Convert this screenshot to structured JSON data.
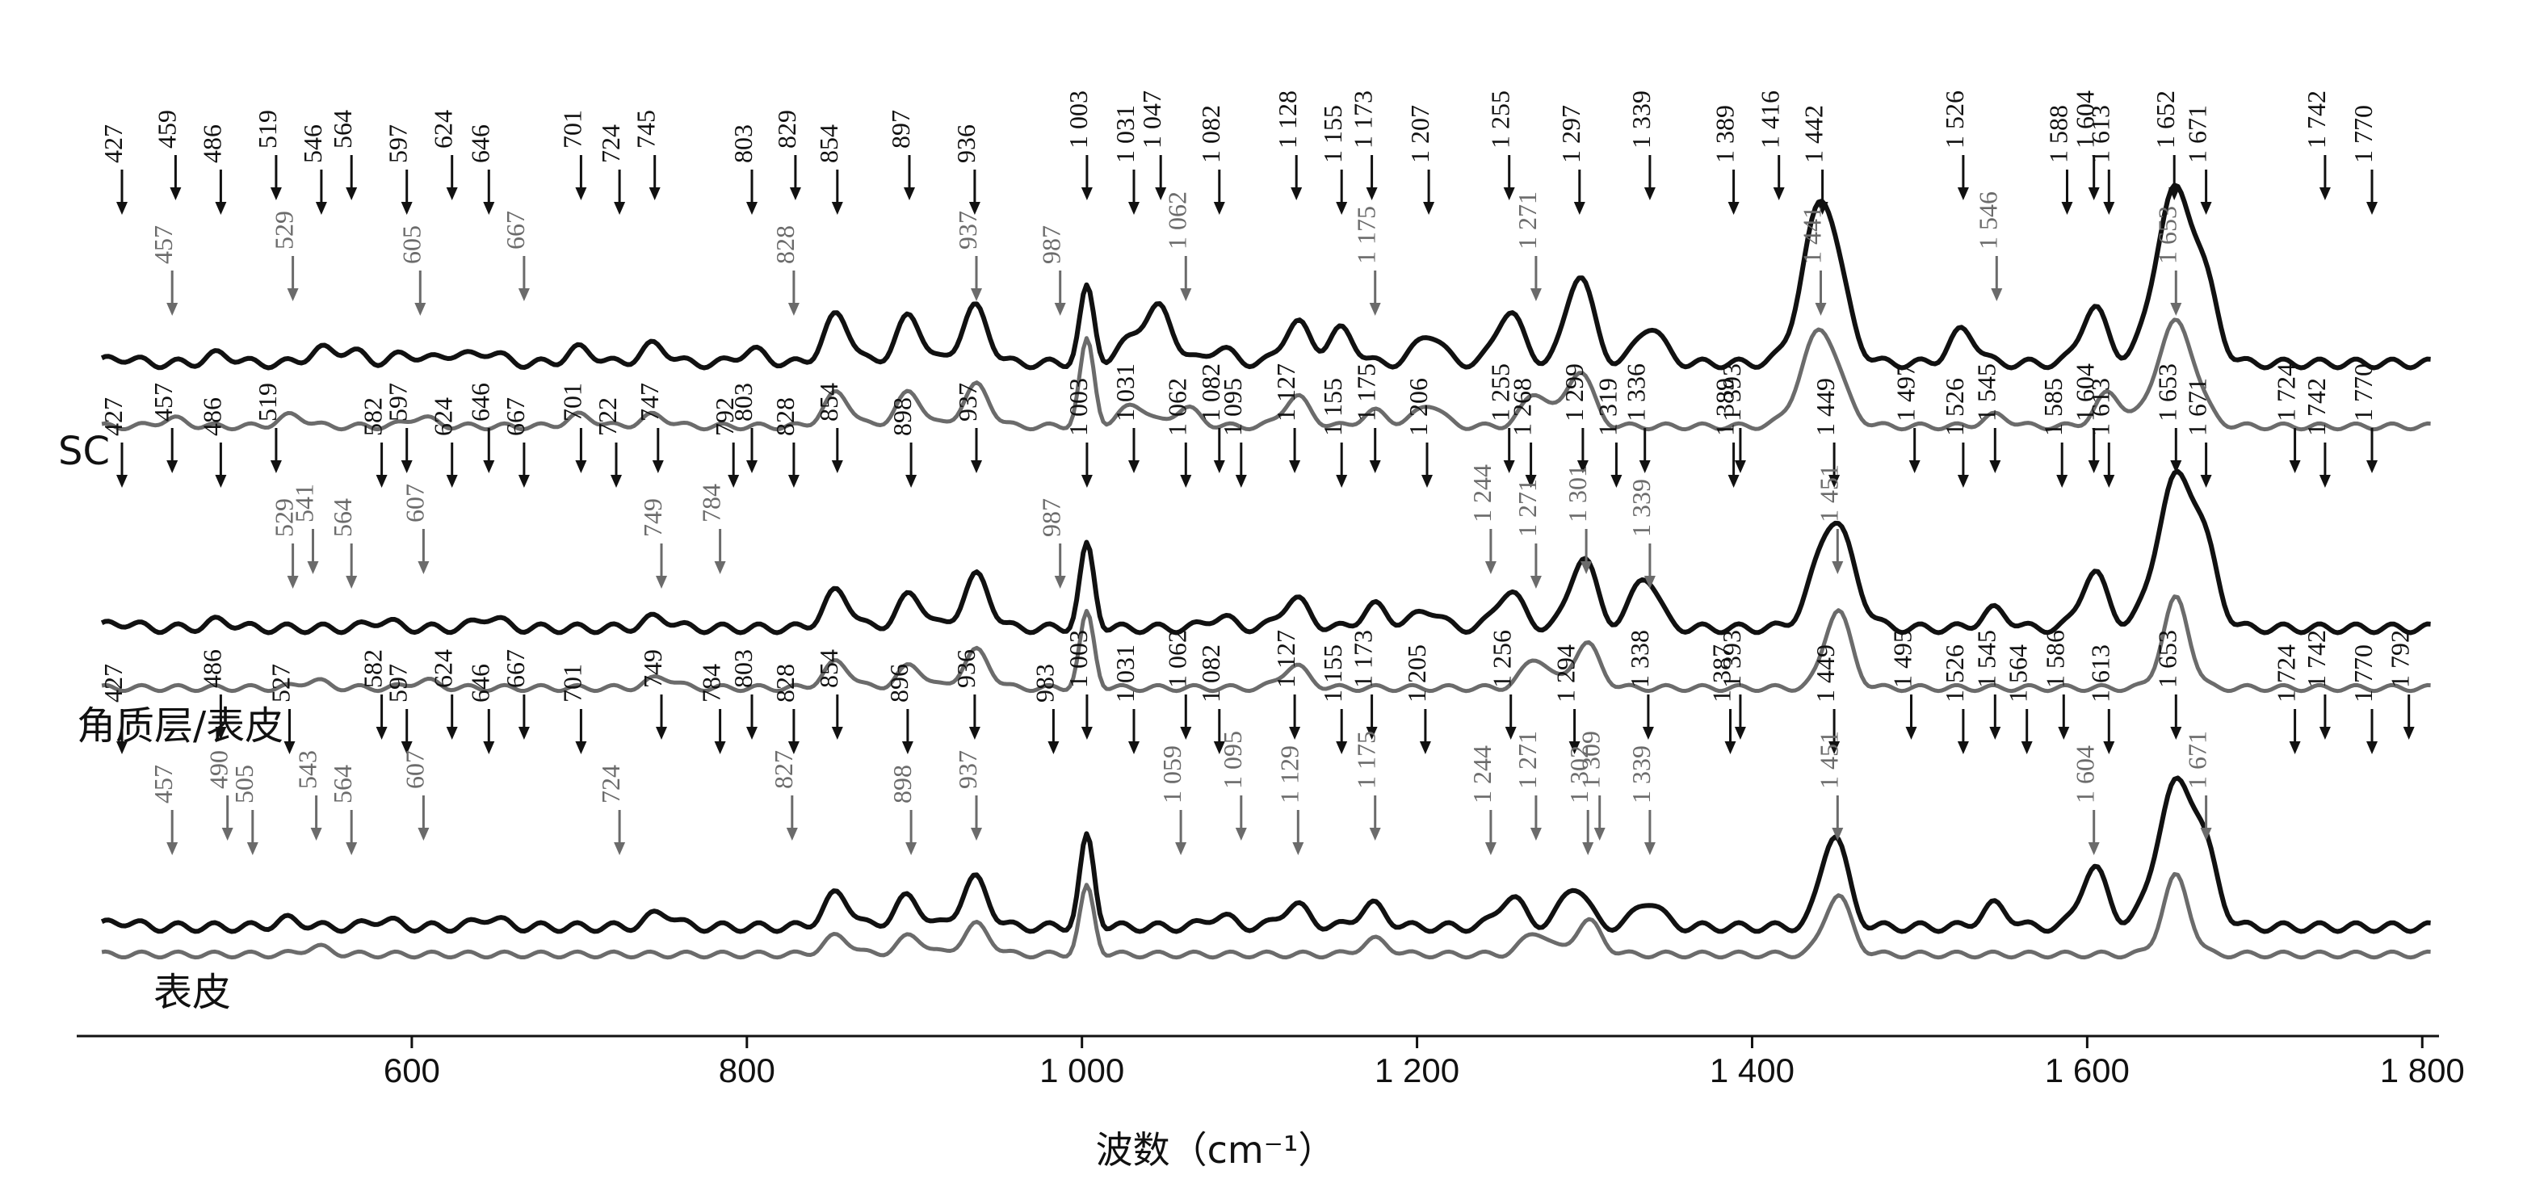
{
  "chart_data": {
    "type": "line",
    "xlabel": "波数（cm⁻¹）",
    "xlim": [
      400,
      1810
    ],
    "ticks": [
      600,
      800,
      1000,
      1200,
      1400,
      1600,
      1800
    ],
    "tick_labels": [
      "600",
      "800",
      "1 000",
      "1 200",
      "1 400",
      "1 600",
      "1 800"
    ],
    "colors": {
      "primary": "#111111",
      "secondary": "#6b6b6b"
    },
    "panels": [
      {
        "label": "SC",
        "primary_peaks": [
          {
            "x": 427,
            "h": 0.15
          },
          {
            "x": 486,
            "h": 0.25
          },
          {
            "x": 546,
            "h": 0.35
          },
          {
            "x": 564,
            "h": 0.3
          },
          {
            "x": 597,
            "h": 0.25
          },
          {
            "x": 624,
            "h": 0.25
          },
          {
            "x": 646,
            "h": 0.3
          },
          {
            "x": 701,
            "h": 0.4
          },
          {
            "x": 745,
            "h": 0.5
          },
          {
            "x": 803,
            "h": 0.35
          },
          {
            "x": 854,
            "h": 1.3
          },
          {
            "x": 897,
            "h": 1.25
          },
          {
            "x": 936,
            "h": 1.5
          },
          {
            "x": 1003,
            "h": 2.0
          },
          {
            "x": 1031,
            "h": 0.7
          },
          {
            "x": 1047,
            "h": 1.4
          },
          {
            "x": 1082,
            "h": 0.4
          },
          {
            "x": 1128,
            "h": 1.1
          },
          {
            "x": 1155,
            "h": 0.9
          },
          {
            "x": 1207,
            "h": 0.8
          },
          {
            "x": 1255,
            "h": 1.4
          },
          {
            "x": 1297,
            "h": 2.4
          },
          {
            "x": 1339,
            "h": 1.0
          },
          {
            "x": 1442,
            "h": 4.4
          },
          {
            "x": 1526,
            "h": 0.9
          },
          {
            "x": 1604,
            "h": 1.5
          },
          {
            "x": 1652,
            "h": 4.6
          },
          {
            "x": 1671,
            "h": 1.5
          }
        ],
        "secondary_peaks": [
          {
            "x": 457,
            "h": 0.2
          },
          {
            "x": 529,
            "h": 0.3
          },
          {
            "x": 605,
            "h": 0.25
          },
          {
            "x": 701,
            "h": 0.3
          },
          {
            "x": 745,
            "h": 0.3
          },
          {
            "x": 854,
            "h": 0.9
          },
          {
            "x": 897,
            "h": 0.9
          },
          {
            "x": 937,
            "h": 1.1
          },
          {
            "x": 1003,
            "h": 2.3
          },
          {
            "x": 1031,
            "h": 0.6
          },
          {
            "x": 1062,
            "h": 0.5
          },
          {
            "x": 1128,
            "h": 0.8
          },
          {
            "x": 1175,
            "h": 0.4
          },
          {
            "x": 1207,
            "h": 0.6
          },
          {
            "x": 1271,
            "h": 0.9
          },
          {
            "x": 1297,
            "h": 1.5
          },
          {
            "x": 1441,
            "h": 2.6
          },
          {
            "x": 1546,
            "h": 0.3
          },
          {
            "x": 1613,
            "h": 0.9
          },
          {
            "x": 1653,
            "h": 2.8
          }
        ],
        "labels_primary": [
          "427",
          "459",
          "486",
          "519",
          "546",
          "564",
          "597",
          "624",
          "646",
          "701",
          "724",
          "745",
          "803",
          "829",
          "854",
          "897",
          "936",
          "1 003",
          "1 031",
          "1 047",
          "1 082",
          "1 128",
          "1 155",
          "1 173",
          "1 207",
          "1 255",
          "1 297",
          "1 339",
          "1 389",
          "1 416",
          "1 442",
          "1 526",
          "1 588",
          "1 604",
          "1 613",
          "1 652",
          "1 671",
          "1 742",
          "1 770"
        ],
        "labels_secondary": [
          "457",
          "529",
          "605",
          "667",
          "828",
          "937",
          "987",
          "1 062",
          "1 175",
          "1 271",
          "1 441",
          "1 546",
          "1 653"
        ]
      },
      {
        "label": "角质层/表皮",
        "primary_peaks": [
          {
            "x": 427,
            "h": 0.15
          },
          {
            "x": 486,
            "h": 0.2
          },
          {
            "x": 582,
            "h": 0.2
          },
          {
            "x": 646,
            "h": 0.3
          },
          {
            "x": 747,
            "h": 0.3
          },
          {
            "x": 854,
            "h": 1.0
          },
          {
            "x": 898,
            "h": 0.9
          },
          {
            "x": 937,
            "h": 1.4
          },
          {
            "x": 1003,
            "h": 2.2
          },
          {
            "x": 1082,
            "h": 0.3
          },
          {
            "x": 1127,
            "h": 0.8
          },
          {
            "x": 1175,
            "h": 0.6
          },
          {
            "x": 1206,
            "h": 0.5
          },
          {
            "x": 1255,
            "h": 1.0
          },
          {
            "x": 1299,
            "h": 1.9
          },
          {
            "x": 1336,
            "h": 1.4
          },
          {
            "x": 1449,
            "h": 2.9
          },
          {
            "x": 1545,
            "h": 0.5
          },
          {
            "x": 1604,
            "h": 1.5
          },
          {
            "x": 1653,
            "h": 4.0
          },
          {
            "x": 1671,
            "h": 1.5
          }
        ],
        "secondary_peaks": [
          {
            "x": 541,
            "h": 0.2
          },
          {
            "x": 607,
            "h": 0.2
          },
          {
            "x": 749,
            "h": 0.3
          },
          {
            "x": 854,
            "h": 0.7
          },
          {
            "x": 898,
            "h": 0.6
          },
          {
            "x": 937,
            "h": 1.0
          },
          {
            "x": 1003,
            "h": 2.0
          },
          {
            "x": 1127,
            "h": 0.6
          },
          {
            "x": 1271,
            "h": 0.8
          },
          {
            "x": 1301,
            "h": 1.2
          },
          {
            "x": 1451,
            "h": 2.1
          },
          {
            "x": 1653,
            "h": 2.4
          }
        ],
        "labels_primary": [
          "427",
          "457",
          "486",
          "519",
          "582",
          "597",
          "624",
          "646",
          "667",
          "701",
          "722",
          "747",
          "792",
          "803",
          "828",
          "854",
          "898",
          "937",
          "1 003",
          "1 031",
          "1 062",
          "1 082",
          "1 095",
          "1 127",
          "1 155",
          "1 175",
          "1 206",
          "1 255",
          "1 268",
          "1 299",
          "1 319",
          "1 336",
          "1 389",
          "1 393",
          "1 449",
          "1 497",
          "1 526",
          "1 545",
          "1 585",
          "1 604",
          "1 613",
          "1 653",
          "1 671",
          "1 724",
          "1 742",
          "1 770"
        ],
        "labels_secondary": [
          "529",
          "541",
          "564",
          "607",
          "749",
          "784",
          "987",
          "1 244",
          "1 271",
          "1 301",
          "1 339",
          "1 451"
        ]
      },
      {
        "label": "表皮",
        "primary_peaks": [
          {
            "x": 427,
            "h": 0.15
          },
          {
            "x": 527,
            "h": 0.2
          },
          {
            "x": 582,
            "h": 0.2
          },
          {
            "x": 646,
            "h": 0.25
          },
          {
            "x": 749,
            "h": 0.4
          },
          {
            "x": 854,
            "h": 0.9
          },
          {
            "x": 896,
            "h": 0.8
          },
          {
            "x": 936,
            "h": 1.3
          },
          {
            "x": 1003,
            "h": 2.4
          },
          {
            "x": 1082,
            "h": 0.3
          },
          {
            "x": 1127,
            "h": 0.6
          },
          {
            "x": 1173,
            "h": 0.6
          },
          {
            "x": 1256,
            "h": 0.8
          },
          {
            "x": 1294,
            "h": 1.1
          },
          {
            "x": 1338,
            "h": 0.7
          },
          {
            "x": 1449,
            "h": 2.5
          },
          {
            "x": 1545,
            "h": 0.6
          },
          {
            "x": 1604,
            "h": 1.6
          },
          {
            "x": 1653,
            "h": 3.8
          },
          {
            "x": 1671,
            "h": 1.4
          }
        ],
        "secondary_peaks": [
          {
            "x": 543,
            "h": 0.2
          },
          {
            "x": 854,
            "h": 0.5
          },
          {
            "x": 898,
            "h": 0.5
          },
          {
            "x": 937,
            "h": 0.8
          },
          {
            "x": 1003,
            "h": 1.8
          },
          {
            "x": 1175,
            "h": 0.4
          },
          {
            "x": 1271,
            "h": 0.6
          },
          {
            "x": 1302,
            "h": 0.9
          },
          {
            "x": 1451,
            "h": 1.6
          },
          {
            "x": 1653,
            "h": 2.1
          }
        ],
        "labels_primary": [
          "427",
          "486",
          "527",
          "582",
          "597",
          "624",
          "646",
          "667",
          "701",
          "749",
          "784",
          "803",
          "828",
          "854",
          "896",
          "936",
          "983",
          "1 003",
          "1 031",
          "1 062",
          "1 082",
          "1 127",
          "1 155",
          "1 173",
          "1 205",
          "1 256",
          "1 294",
          "1 338",
          "1 387",
          "1 393",
          "1 449",
          "1 495",
          "1 526",
          "1 545",
          "1 564",
          "1 586",
          "1 613",
          "1 653",
          "1 724",
          "1 742",
          "1 770",
          "1 792"
        ],
        "labels_secondary": [
          "457",
          "490",
          "505",
          "543",
          "564",
          "607",
          "724",
          "827",
          "898",
          "937",
          "1 059",
          "1 095",
          "1 129",
          "1 175",
          "1 244",
          "1 271",
          "1 302",
          "1 309",
          "1 339",
          "1 451",
          "1 604",
          "1 671"
        ]
      }
    ]
  }
}
